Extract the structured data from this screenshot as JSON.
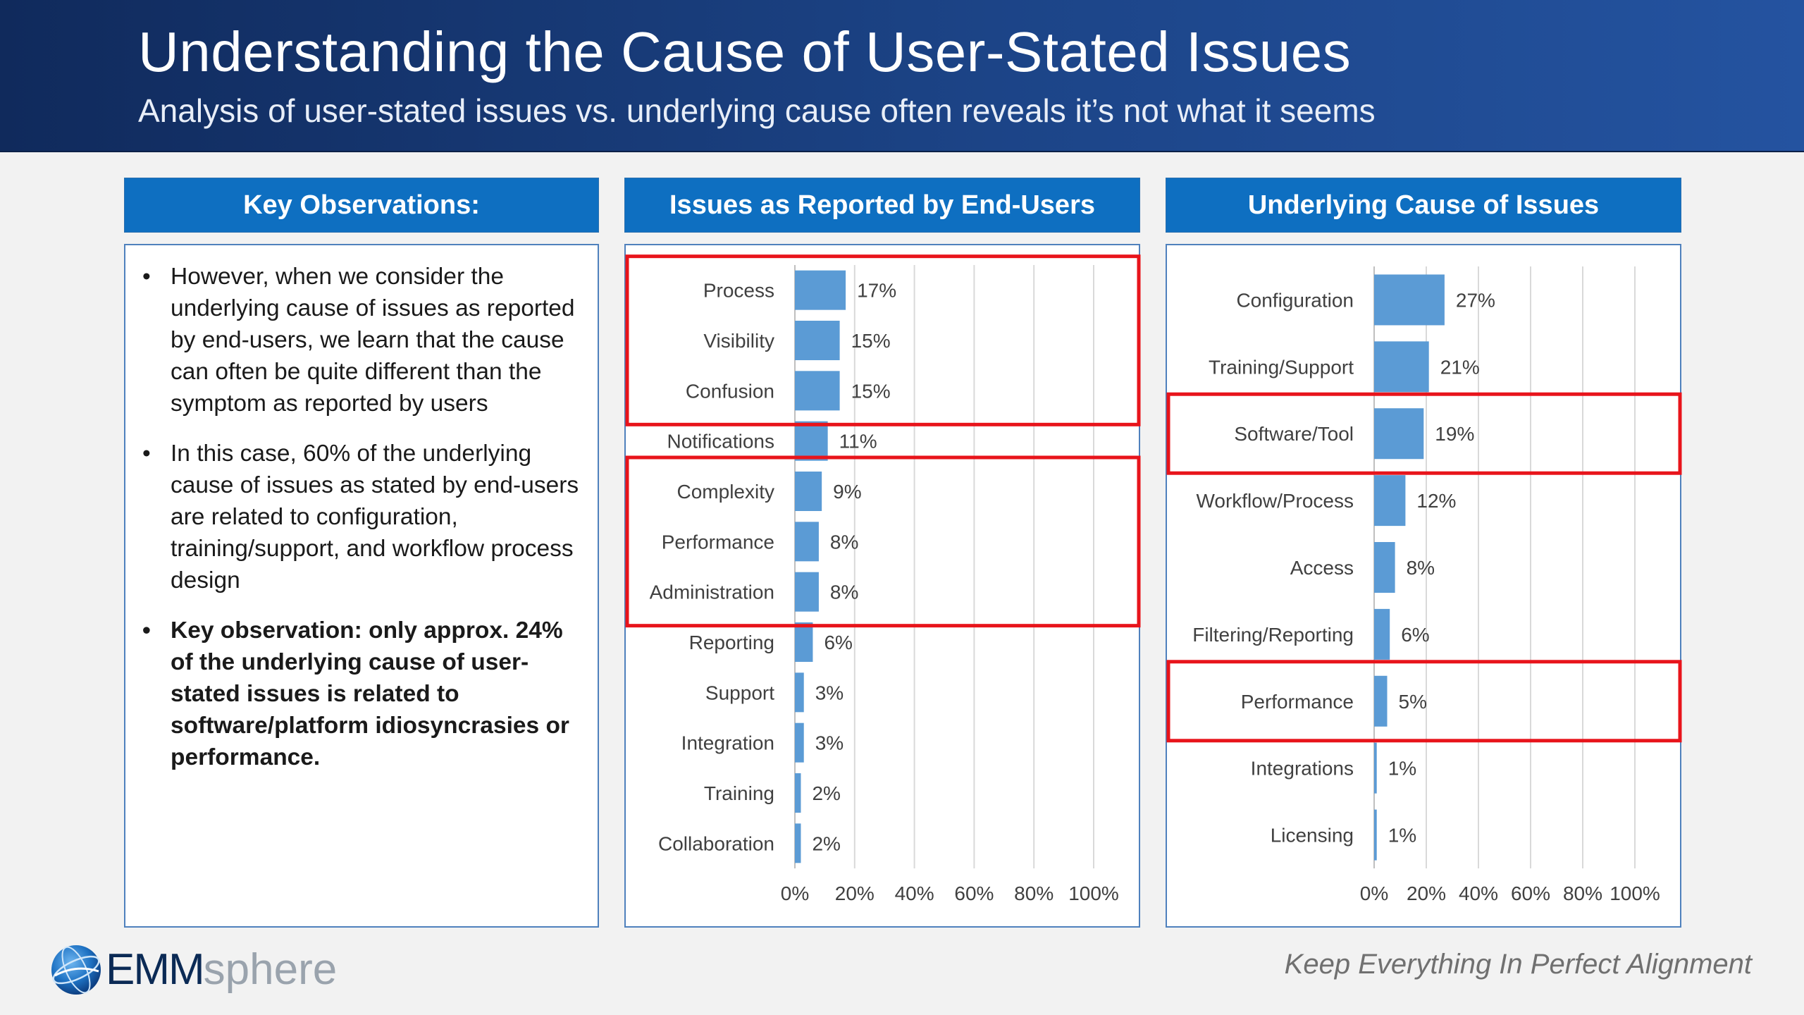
{
  "header": {
    "title": "Understanding the Cause of User-Stated Issues",
    "subtitle": "Analysis of user-stated issues vs. underlying cause often reveals it’s not what it seems"
  },
  "observations": {
    "heading": "Key Observations:",
    "items": [
      "However, when we consider the underlying cause of issues as reported by end-users, we learn that the cause can often be quite different than the symptom as reported by users",
      "In this case, 60% of the underlying cause of issues as stated by end-users are related to configuration, training/support, and workflow process design",
      "Key observation:  only approx. 24% of the underlying cause of user-stated issues is related to software/platform idiosyncrasies or performance."
    ]
  },
  "chart_data": [
    {
      "type": "bar",
      "orientation": "horizontal",
      "title": "Issues as Reported by End-Users",
      "categories": [
        "Process",
        "Visibility",
        "Confusion",
        "Notifications",
        "Complexity",
        "Performance",
        "Administration",
        "Reporting",
        "Support",
        "Integration",
        "Training",
        "Collaboration"
      ],
      "values": [
        17,
        15,
        15,
        11,
        9,
        8,
        8,
        6,
        3,
        3,
        2,
        2
      ],
      "data_labels": [
        "17%",
        "15%",
        "15%",
        "11%",
        "9%",
        "8%",
        "8%",
        "6%",
        "3%",
        "3%",
        "2%",
        "2%"
      ],
      "xlim": [
        0,
        100
      ],
      "x_ticks": [
        "0%",
        "20%",
        "40%",
        "60%",
        "80%",
        "100%"
      ],
      "grid": true,
      "highlighted_groups": [
        [
          "Process",
          "Visibility",
          "Confusion"
        ],
        [
          "Complexity",
          "Performance",
          "Administration"
        ]
      ],
      "bar_color": "#5b9bd5",
      "highlight_color": "#e8141b"
    },
    {
      "type": "bar",
      "orientation": "horizontal",
      "title": "Underlying Cause of Issues",
      "categories": [
        "Configuration",
        "Training/Support",
        "Software/Tool",
        "Workflow/Process",
        "Access",
        "Filtering/Reporting",
        "Performance",
        "Integrations",
        "Licensing"
      ],
      "values": [
        27,
        21,
        19,
        12,
        8,
        6,
        5,
        1,
        1
      ],
      "data_labels": [
        "27%",
        "21%",
        "19%",
        "12%",
        "8%",
        "6%",
        "5%",
        "1%",
        "1%"
      ],
      "xlim": [
        0,
        100
      ],
      "x_ticks": [
        "0%",
        "20%",
        "40%",
        "60%",
        "80%",
        "100%"
      ],
      "grid": true,
      "highlighted_groups": [
        [
          "Software/Tool"
        ],
        [
          "Performance"
        ]
      ],
      "bar_color": "#5b9bd5",
      "highlight_color": "#e8141b"
    }
  ],
  "footer": {
    "logo_emm": "EMM",
    "logo_sphere": "sphere",
    "tagline": "Keep Everything In Perfect Alignment"
  },
  "icons": {
    "logo": "globe-icon"
  }
}
